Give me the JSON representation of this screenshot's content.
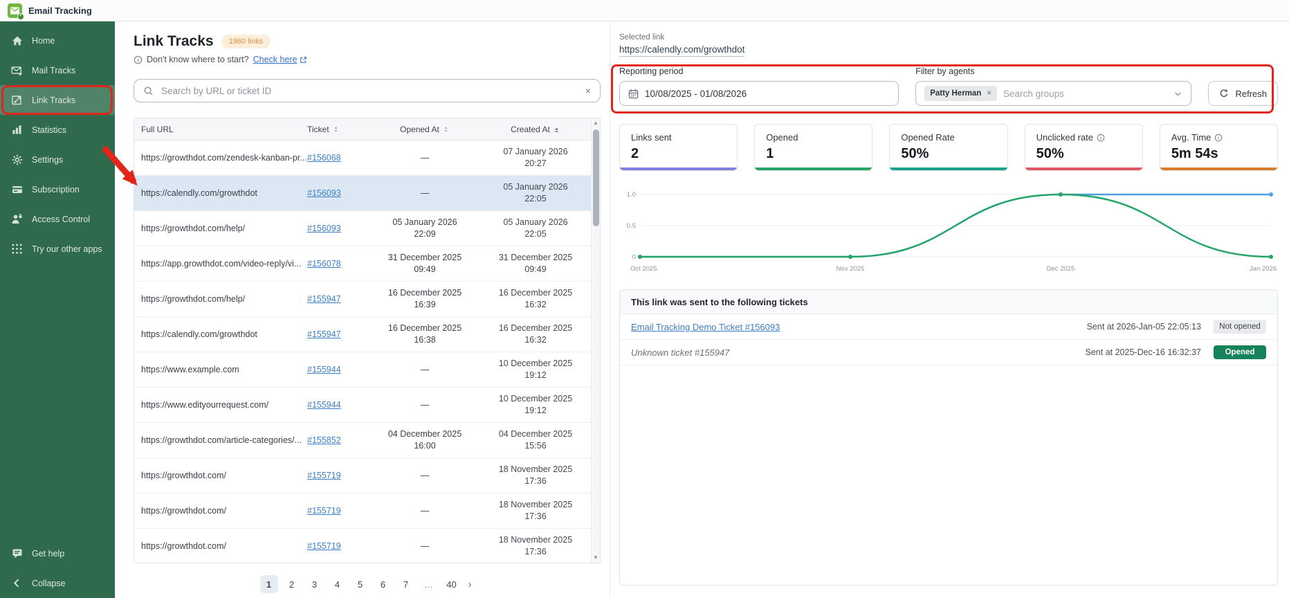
{
  "topbar": {
    "app_title": "Email Tracking"
  },
  "sidebar": {
    "items": [
      {
        "id": "home",
        "label": "Home",
        "icon": "home",
        "active": false
      },
      {
        "id": "mail-tracks",
        "label": "Mail Tracks",
        "icon": "mail",
        "active": false
      },
      {
        "id": "link-tracks",
        "label": "Link Tracks",
        "icon": "link-tracks",
        "active": true
      },
      {
        "id": "statistics",
        "label": "Statistics",
        "icon": "stats",
        "active": false
      },
      {
        "id": "settings",
        "label": "Settings",
        "icon": "gear",
        "active": false
      },
      {
        "id": "subscription",
        "label": "Subscription",
        "icon": "card",
        "active": false
      },
      {
        "id": "access-control",
        "label": "Access Control",
        "icon": "person-lock",
        "active": false
      },
      {
        "id": "try-other-apps",
        "label": "Try our other apps",
        "icon": "apps-grid",
        "active": false
      }
    ],
    "footer_items": [
      {
        "id": "get-help",
        "label": "Get help",
        "icon": "chat",
        "active": false
      },
      {
        "id": "collapse",
        "label": "Collapse",
        "icon": "chevron-left",
        "active": false
      }
    ]
  },
  "main": {
    "title": "Link Tracks",
    "badge": "1960 links",
    "hint_text": "Don't know where to start?",
    "hint_link": "Check here",
    "search_placeholder": "Search by URL or ticket ID",
    "clear_glyph": "×",
    "table": {
      "columns": [
        {
          "label": "Full URL",
          "sort": "none"
        },
        {
          "label": "Ticket",
          "sort": "both"
        },
        {
          "label": "Opened At",
          "sort": "both"
        },
        {
          "label": "Created At",
          "sort": "desc"
        }
      ],
      "em_dash": "—",
      "rows": [
        {
          "url": "https://growthdot.com/zendesk-kanban-pr...",
          "ticket": "#156068",
          "opened_date": "—",
          "opened_time": "",
          "created_date": "07 January 2026",
          "created_time": "20:27",
          "highlight": false
        },
        {
          "url": "https://calendly.com/growthdot",
          "ticket": "#156093",
          "opened_date": "—",
          "opened_time": "",
          "created_date": "05 January 2026",
          "created_time": "22:05",
          "highlight": true
        },
        {
          "url": "https://growthdot.com/help/",
          "ticket": "#156093",
          "opened_date": "05 January 2026",
          "opened_time": "22:09",
          "created_date": "05 January 2026",
          "created_time": "22:05",
          "highlight": false
        },
        {
          "url": "https://app.growthdot.com/video-reply/vi...",
          "ticket": "#156078",
          "opened_date": "31 December 2025",
          "opened_time": "09:49",
          "created_date": "31 December 2025",
          "created_time": "09:49",
          "highlight": false
        },
        {
          "url": "https://growthdot.com/help/",
          "ticket": "#155947",
          "opened_date": "16 December 2025",
          "opened_time": "16:39",
          "created_date": "16 December 2025",
          "created_time": "16:32",
          "highlight": false
        },
        {
          "url": "https://calendly.com/growthdot",
          "ticket": "#155947",
          "opened_date": "16 December 2025",
          "opened_time": "16:38",
          "created_date": "16 December 2025",
          "created_time": "16:32",
          "highlight": false
        },
        {
          "url": "https://www.example.com",
          "ticket": "#155944",
          "opened_date": "—",
          "opened_time": "",
          "created_date": "10 December 2025",
          "created_time": "19:12",
          "highlight": false
        },
        {
          "url": "https://www.edityourrequest.com/",
          "ticket": "#155944",
          "opened_date": "—",
          "opened_time": "",
          "created_date": "10 December 2025",
          "created_time": "19:12",
          "highlight": false
        },
        {
          "url": "https://growthdot.com/article-categories/...",
          "ticket": "#155852",
          "opened_date": "04 December 2025",
          "opened_time": "16:00",
          "created_date": "04 December 2025",
          "created_time": "15:56",
          "highlight": false
        },
        {
          "url": "https://growthdot.com/",
          "ticket": "#155719",
          "opened_date": "—",
          "opened_time": "",
          "created_date": "18 November 2025",
          "created_time": "17:36",
          "highlight": false
        },
        {
          "url": "https://growthdot.com/",
          "ticket": "#155719",
          "opened_date": "—",
          "opened_time": "",
          "created_date": "18 November 2025",
          "created_time": "17:36",
          "highlight": false
        },
        {
          "url": "https://growthdot.com/",
          "ticket": "#155719",
          "opened_date": "—",
          "opened_time": "",
          "created_date": "18 November 2025",
          "created_time": "17:36",
          "highlight": false
        }
      ]
    },
    "pagination": {
      "pages": [
        "1",
        "2",
        "3",
        "4",
        "5",
        "6",
        "7",
        "...",
        "40"
      ],
      "active": "1",
      "next_glyph": "›"
    }
  },
  "panel": {
    "selected_link_label": "Selected link",
    "selected_link": "https://calendly.com/growthdot",
    "reporting_period_label": "Reporting period",
    "reporting_period_value": "10/08/2025 - 01/08/2026",
    "filter_label": "Filter by agents",
    "agent_chip": "Patty Herman",
    "chip_remove_glyph": "×",
    "filter_placeholder": "Search groups",
    "refresh_label": "Refresh",
    "stats": [
      {
        "label": "Links sent",
        "value": "2",
        "accent": "#8081de",
        "info": false
      },
      {
        "label": "Opened",
        "value": "1",
        "accent": "#27a567",
        "info": false
      },
      {
        "label": "Opened Rate",
        "value": "50%",
        "accent": "#17a287",
        "info": false
      },
      {
        "label": "Unclicked rate",
        "value": "50%",
        "accent": "#e25563",
        "info": true
      },
      {
        "label": "Avg. Time",
        "value": "5m 54s",
        "accent": "#d97c2e",
        "info": true
      }
    ],
    "tickets": {
      "header": "This link was sent to the following tickets",
      "rows": [
        {
          "title": "Email Tracking Demo Ticket #156093",
          "is_link": true,
          "sent": "Sent at 2026-Jan-05 22:05:13",
          "status": "Not opened",
          "status_type": "muted"
        },
        {
          "title": "Unknown ticket #155947",
          "is_link": false,
          "sent": "Sent at 2025-Dec-16 16:32:37",
          "status": "Opened",
          "status_type": "success"
        }
      ]
    }
  },
  "chart_data": {
    "type": "line",
    "x": [
      "Oct 2025",
      "Nov 2025",
      "Dec 2025",
      "Jan 2026"
    ],
    "series": [
      {
        "name": "series-blue",
        "color": "#4b9fe6",
        "values": [
          0,
          0,
          1,
          1
        ]
      },
      {
        "name": "series-green",
        "color": "#22a565",
        "values": [
          0,
          0,
          1,
          0
        ]
      }
    ],
    "ylim": [
      0,
      1
    ],
    "yticks": [
      0,
      0.5,
      1
    ],
    "ytick_labels": [
      "0",
      "0.5",
      "1.0"
    ],
    "grid": true,
    "legend": "none"
  },
  "colors": {
    "sidebar_bg": "#2e6a4b",
    "logo_green": "#6fb73e",
    "row_highlight": "#dbe8f4",
    "link_blue": "#3d7fc4",
    "badge_bg": "#fdeeda",
    "badge_text": "#dd8e44",
    "annotation_red": "#e1251b",
    "opened_badge": "#17835b",
    "not_opened_badge": "#e8eaed"
  }
}
